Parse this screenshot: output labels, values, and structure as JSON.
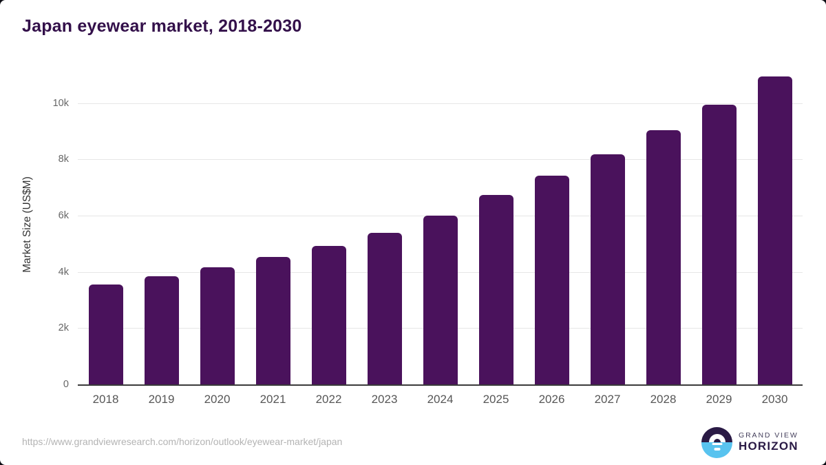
{
  "header": {
    "title": "Japan eyewear market, 2018-2030"
  },
  "chart_data": {
    "type": "bar",
    "title": "Japan eyewear market, 2018-2030",
    "categories": [
      "2018",
      "2019",
      "2020",
      "2021",
      "2022",
      "2023",
      "2024",
      "2025",
      "2026",
      "2027",
      "2028",
      "2029",
      "2030"
    ],
    "values": [
      3560,
      3840,
      4160,
      4530,
      4920,
      5390,
      6000,
      6730,
      7430,
      8180,
      9040,
      9950,
      10950
    ],
    "xlabel": "",
    "ylabel": "Market Size (US$M)",
    "ylim": [
      0,
      11340
    ],
    "yticks": [
      {
        "value": 0,
        "label": "0"
      },
      {
        "value": 2000,
        "label": "2k"
      },
      {
        "value": 4000,
        "label": "4k"
      },
      {
        "value": 6000,
        "label": "6k"
      },
      {
        "value": 8000,
        "label": "8k"
      },
      {
        "value": 10000,
        "label": "10k"
      }
    ],
    "grid": "on",
    "legend": "none",
    "bar_color": "#4a125c",
    "gridline_color": "#e6e6e6",
    "axis_line_color": "#3a3a3a",
    "ytick_color": "#666666",
    "xtick_color": "#565656",
    "title_color": "#33104a"
  },
  "footer": {
    "source_url": "https://www.grandviewresearch.com/horizon/outlook/eyewear-market/japan",
    "logo": {
      "icon": "horizon-sunrise-icon",
      "brand_top": "GRAND VIEW",
      "brand_bottom": "HORIZON",
      "circle_top_color": "#2a1a45",
      "circle_bottom_color": "#58c3ef"
    }
  }
}
